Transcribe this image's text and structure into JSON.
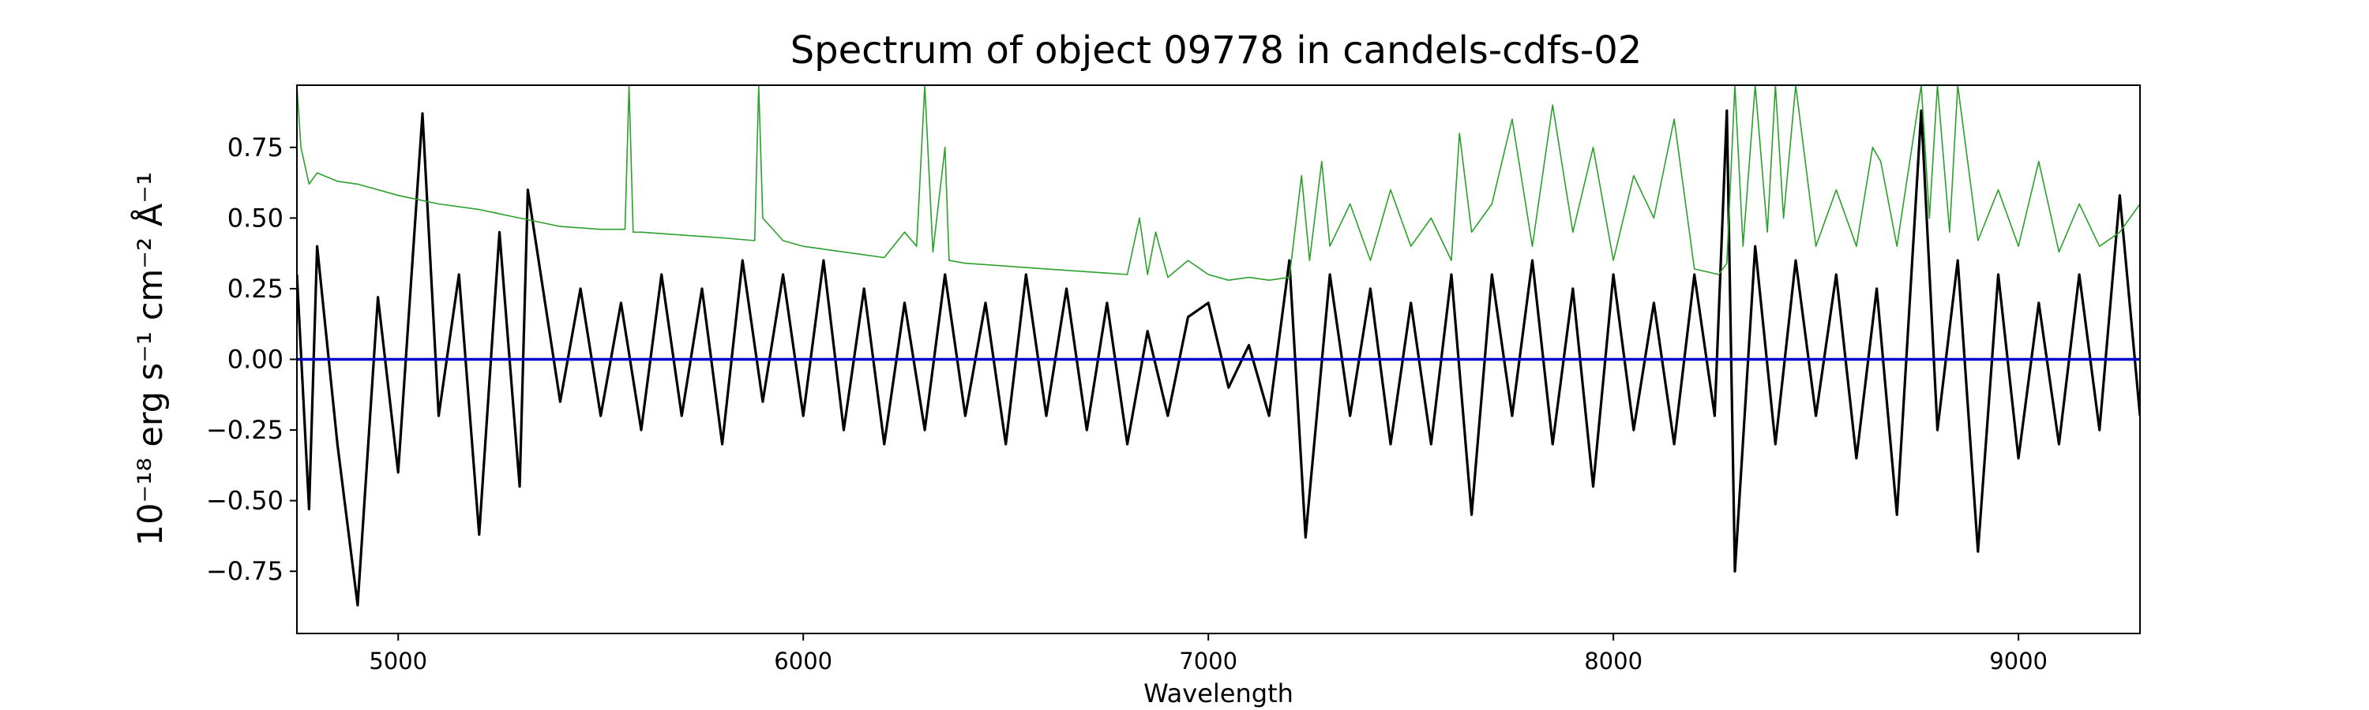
{
  "chart_data": {
    "type": "line",
    "title": "Spectrum of object 09778 in candels-cdfs-02",
    "xlabel": "Wavelength",
    "ylabel": "10⁻¹⁸ erg s⁻¹ cm⁻² Å⁻¹",
    "xlim": [
      4750,
      9300
    ],
    "ylim": [
      -0.97,
      0.97
    ],
    "xticks": [
      5000,
      6000,
      7000,
      8000,
      9000
    ],
    "xtick_labels": [
      "5000",
      "6000",
      "7000",
      "8000",
      "9000"
    ],
    "yticks": [
      -0.75,
      -0.5,
      -0.25,
      0.0,
      0.25,
      0.5,
      0.75
    ],
    "ytick_labels": [
      "−0.75",
      "−0.50",
      "−0.25",
      "0.00",
      "0.25",
      "0.50",
      "0.75"
    ],
    "grid": false,
    "series": [
      {
        "role": "flux",
        "color": "#000000",
        "x": [
          4750,
          4780,
          4800,
          4850,
          4900,
          4950,
          5000,
          5060,
          5100,
          5150,
          5200,
          5250,
          5300,
          5320,
          5400,
          5450,
          5500,
          5550,
          5600,
          5650,
          5700,
          5750,
          5800,
          5850,
          5900,
          5950,
          6000,
          6050,
          6100,
          6150,
          6200,
          6250,
          6300,
          6350,
          6400,
          6450,
          6500,
          6550,
          6600,
          6650,
          6700,
          6750,
          6800,
          6850,
          6900,
          6950,
          7000,
          7050,
          7100,
          7150,
          7200,
          7240,
          7300,
          7350,
          7400,
          7450,
          7500,
          7550,
          7600,
          7650,
          7700,
          7750,
          7800,
          7850,
          7900,
          7950,
          8000,
          8050,
          8100,
          8150,
          8200,
          8250,
          8280,
          8300,
          8350,
          8400,
          8450,
          8500,
          8550,
          8600,
          8650,
          8700,
          8760,
          8800,
          8850,
          8900,
          8950,
          9000,
          9050,
          9100,
          9150,
          9200,
          9250,
          9300
        ],
        "y": [
          0.3,
          -0.53,
          0.4,
          -0.3,
          -0.87,
          0.22,
          -0.4,
          0.87,
          -0.2,
          0.3,
          -0.62,
          0.45,
          -0.45,
          0.6,
          -0.15,
          0.25,
          -0.2,
          0.2,
          -0.25,
          0.3,
          -0.2,
          0.25,
          -0.3,
          0.35,
          -0.15,
          0.3,
          -0.2,
          0.35,
          -0.25,
          0.25,
          -0.3,
          0.2,
          -0.25,
          0.3,
          -0.2,
          0.2,
          -0.3,
          0.3,
          -0.2,
          0.25,
          -0.25,
          0.2,
          -0.3,
          0.1,
          -0.2,
          0.15,
          0.2,
          -0.1,
          0.05,
          -0.2,
          0.35,
          -0.63,
          0.3,
          -0.2,
          0.25,
          -0.3,
          0.2,
          -0.3,
          0.3,
          -0.55,
          0.3,
          -0.2,
          0.35,
          -0.3,
          0.25,
          -0.45,
          0.3,
          -0.25,
          0.2,
          -0.3,
          0.3,
          -0.2,
          0.88,
          -0.75,
          0.4,
          -0.3,
          0.35,
          -0.2,
          0.3,
          -0.35,
          0.25,
          -0.55,
          0.88,
          -0.25,
          0.35,
          -0.68,
          0.3,
          -0.35,
          0.2,
          -0.3,
          0.3,
          -0.25,
          0.58,
          -0.2
        ]
      },
      {
        "role": "noise",
        "color": "#2ca02c",
        "x": [
          4750,
          4760,
          4780,
          4800,
          4850,
          4900,
          5000,
          5100,
          5200,
          5300,
          5400,
          5500,
          5560,
          5570,
          5580,
          5600,
          5700,
          5800,
          5880,
          5890,
          5900,
          5950,
          6000,
          6100,
          6200,
          6250,
          6280,
          6300,
          6320,
          6350,
          6360,
          6400,
          6500,
          6600,
          6700,
          6800,
          6830,
          6850,
          6870,
          6900,
          6950,
          7000,
          7050,
          7100,
          7150,
          7200,
          7230,
          7250,
          7280,
          7300,
          7350,
          7400,
          7450,
          7500,
          7550,
          7600,
          7620,
          7650,
          7700,
          7750,
          7800,
          7850,
          7900,
          7950,
          8000,
          8050,
          8100,
          8150,
          8200,
          8260,
          8280,
          8300,
          8320,
          8350,
          8380,
          8400,
          8420,
          8450,
          8500,
          8550,
          8600,
          8640,
          8660,
          8700,
          8760,
          8780,
          8800,
          8830,
          8850,
          8900,
          8950,
          9000,
          9050,
          9100,
          9150,
          9200,
          9250,
          9300
        ],
        "y": [
          0.97,
          0.75,
          0.62,
          0.66,
          0.63,
          0.62,
          0.58,
          0.55,
          0.53,
          0.5,
          0.47,
          0.46,
          0.46,
          0.97,
          0.45,
          0.45,
          0.44,
          0.43,
          0.42,
          0.97,
          0.5,
          0.42,
          0.4,
          0.38,
          0.36,
          0.45,
          0.4,
          0.97,
          0.38,
          0.75,
          0.35,
          0.34,
          0.33,
          0.32,
          0.31,
          0.3,
          0.5,
          0.3,
          0.45,
          0.29,
          0.35,
          0.3,
          0.28,
          0.29,
          0.28,
          0.29,
          0.65,
          0.35,
          0.7,
          0.4,
          0.55,
          0.35,
          0.6,
          0.4,
          0.5,
          0.35,
          0.8,
          0.45,
          0.55,
          0.85,
          0.4,
          0.9,
          0.45,
          0.75,
          0.35,
          0.65,
          0.5,
          0.85,
          0.32,
          0.3,
          0.34,
          0.97,
          0.4,
          0.97,
          0.45,
          0.97,
          0.5,
          0.97,
          0.4,
          0.6,
          0.4,
          0.75,
          0.7,
          0.4,
          0.97,
          0.5,
          0.97,
          0.45,
          0.97,
          0.42,
          0.6,
          0.4,
          0.7,
          0.38,
          0.55,
          0.4,
          0.45,
          0.55
        ]
      },
      {
        "role": "model",
        "color": "#0000cc",
        "x": [
          4750,
          9300
        ],
        "y": [
          0.0,
          0.0
        ]
      }
    ]
  }
}
